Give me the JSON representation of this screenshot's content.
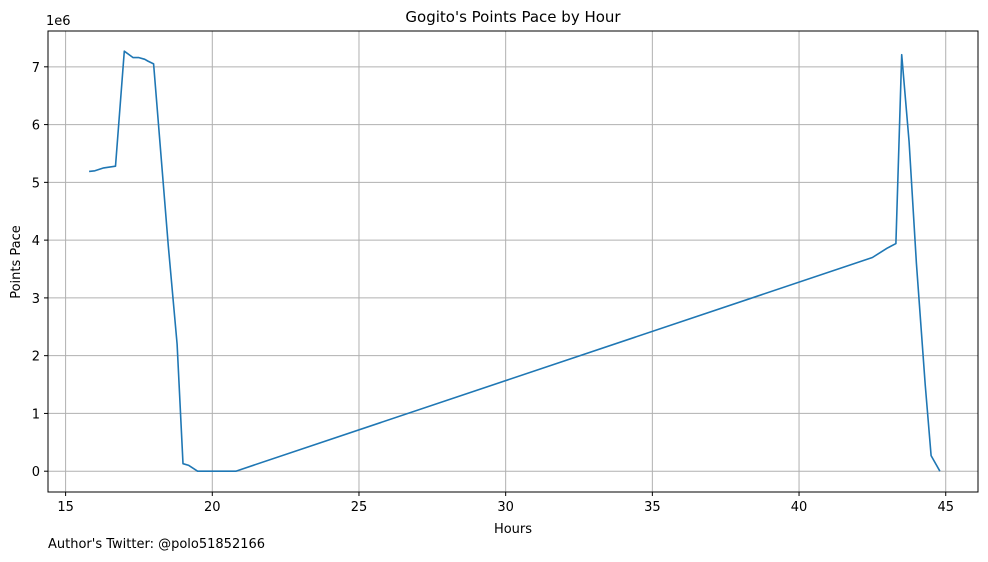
{
  "chart_data": {
    "type": "line",
    "title": "Gogito's Points Pace by Hour",
    "xlabel": "Hours",
    "ylabel": "Points Pace",
    "y_multiplier": "1e6",
    "xlim": [
      14.4,
      46.1
    ],
    "ylim": [
      -0.36,
      7.62
    ],
    "x_ticks": [
      15,
      20,
      25,
      30,
      35,
      40,
      45
    ],
    "y_ticks": [
      0,
      1,
      2,
      3,
      4,
      5,
      6,
      7
    ],
    "grid": true,
    "line_color": "#1f77b4",
    "series": [
      {
        "x": [
          15.8,
          16.0,
          16.3,
          16.7,
          17.0,
          17.3,
          17.5,
          17.7,
          17.8,
          18.0,
          18.5,
          18.8,
          19.0,
          19.2,
          19.5,
          20.0,
          20.5,
          20.8,
          42.5,
          43.0,
          43.3,
          43.5,
          43.75,
          44.0,
          44.3,
          44.5,
          44.8
        ],
        "y": [
          5.19,
          5.2,
          5.25,
          5.28,
          7.27,
          7.16,
          7.16,
          7.13,
          7.1,
          7.05,
          3.9,
          2.2,
          0.13,
          0.1,
          0.0,
          0.0,
          0.0,
          0.0,
          3.7,
          3.86,
          3.94,
          7.21,
          5.7,
          3.6,
          1.5,
          0.27,
          0.0
        ]
      }
    ]
  },
  "footer": {
    "author_credit": "Author's Twitter: @polo51852166"
  }
}
